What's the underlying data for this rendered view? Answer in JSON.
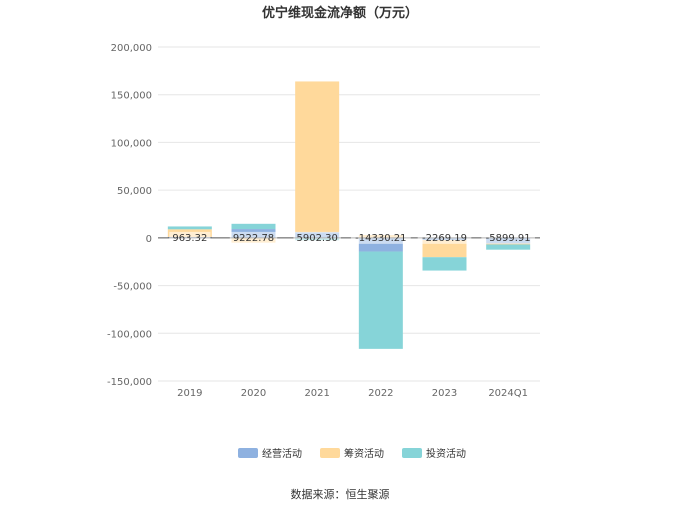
{
  "chart_data": {
    "type": "bar",
    "title": "优宁维现金流净额（万元）",
    "categories": [
      "2019",
      "2020",
      "2021",
      "2022",
      "2023",
      "2024Q1"
    ],
    "ylim": [
      -150000,
      200000
    ],
    "yticks": [
      200000,
      150000,
      100000,
      50000,
      0,
      -50000,
      -100000,
      -150000
    ],
    "ytick_labels": [
      "200,000",
      "150,000",
      "100,000",
      "50,000",
      "0",
      "-50,000",
      "-100,000",
      "-150,000"
    ],
    "grid": true,
    "stacked": true,
    "legend_position": "bottom",
    "series": [
      {
        "name": "经营活动",
        "color": "#8eb1e0",
        "values": [
          963.32,
          9222.78,
          5902.3,
          -14330.21,
          -2269.19,
          -5899.91
        ]
      },
      {
        "name": "筹资活动",
        "color": "#ffd99b",
        "values": [
          8000,
          -5000,
          158000,
          3000,
          -18000,
          -1000
        ]
      },
      {
        "name": "投资活动",
        "color": "#86d4d8",
        "values": [
          3000,
          5500,
          -2500,
          -102000,
          -14000,
          -5500
        ]
      }
    ],
    "data_labels": [
      "963.32",
      "9222.78",
      "5902.30",
      "-14330.21",
      "-2269.19",
      "-5899.91"
    ]
  },
  "source": "数据来源：恒生聚源"
}
